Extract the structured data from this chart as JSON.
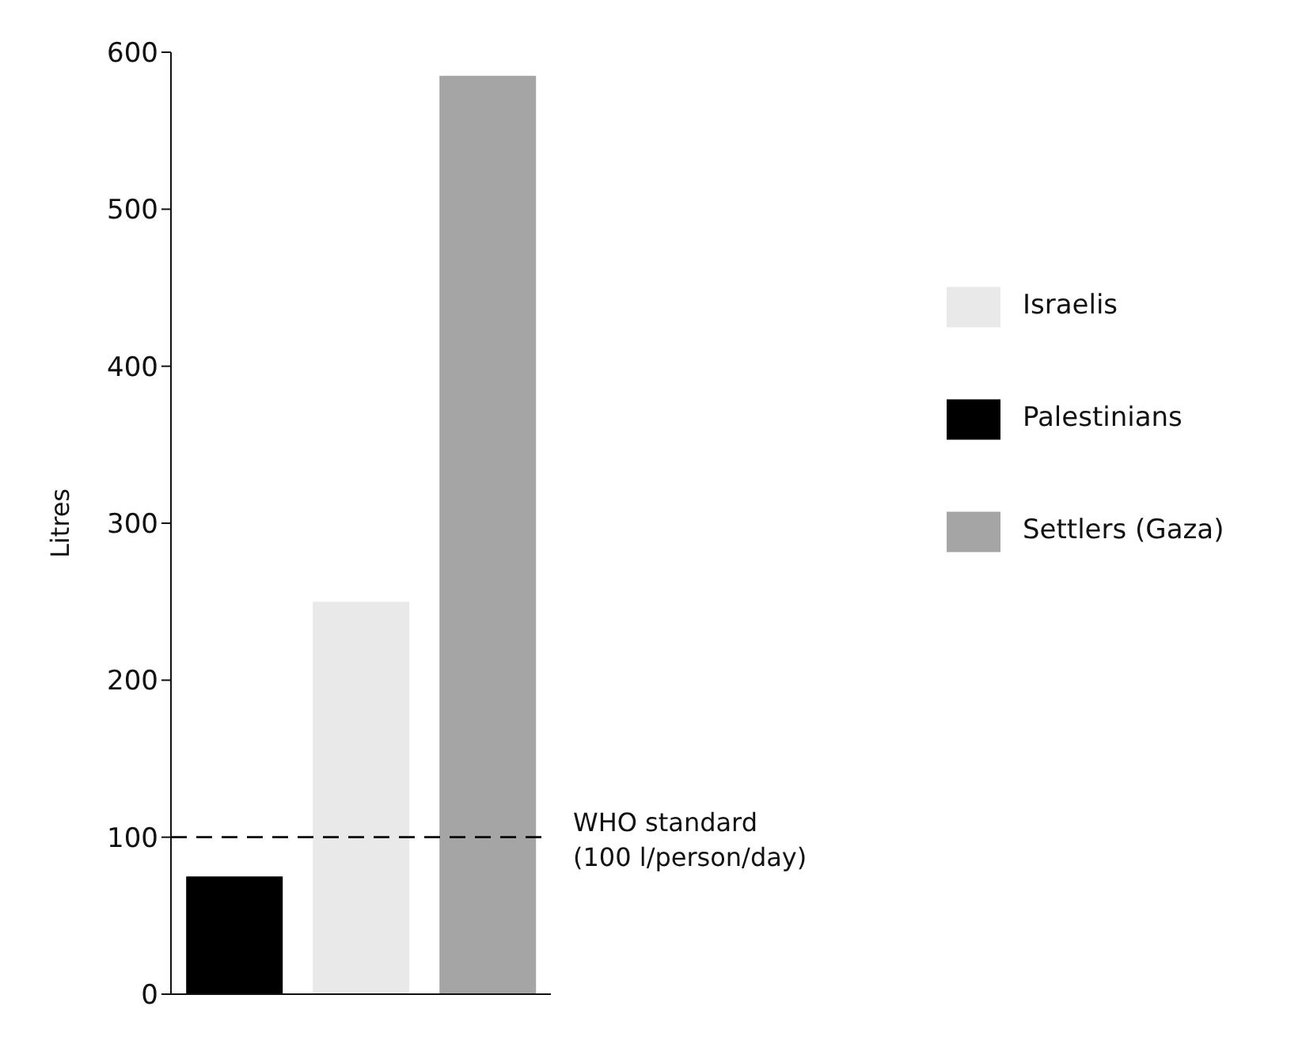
{
  "chart_data": {
    "type": "bar",
    "ylabel": "Litres",
    "categories": [
      null,
      null,
      null
    ],
    "series": [
      {
        "name": "Palestinians",
        "color": "#000000",
        "values": [
          75,
          null,
          null
        ]
      },
      {
        "name": "Israelis",
        "color": "#e9e9e9",
        "values": [
          null,
          250,
          null
        ]
      },
      {
        "name": "Settlers (Gaza)",
        "color": "#a5a5a5",
        "values": [
          null,
          null,
          585
        ]
      }
    ],
    "ylim": [
      0,
      600
    ],
    "yticks": [
      0,
      100,
      200,
      300,
      400,
      500,
      600
    ],
    "grid": false,
    "legend": "right",
    "ref_lines": [
      {
        "axis": "y",
        "value": 100,
        "label": "WHO standard\n(100 l/person/day)",
        "line_style": "dashed",
        "color": "#000000"
      }
    ]
  }
}
